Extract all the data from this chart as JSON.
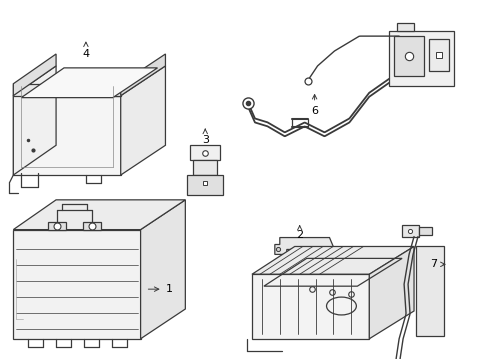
{
  "background_color": "#ffffff",
  "line_color": "#3a3a3a",
  "text_color": "#000000",
  "fig_width": 4.9,
  "fig_height": 3.6,
  "dpi": 100
}
